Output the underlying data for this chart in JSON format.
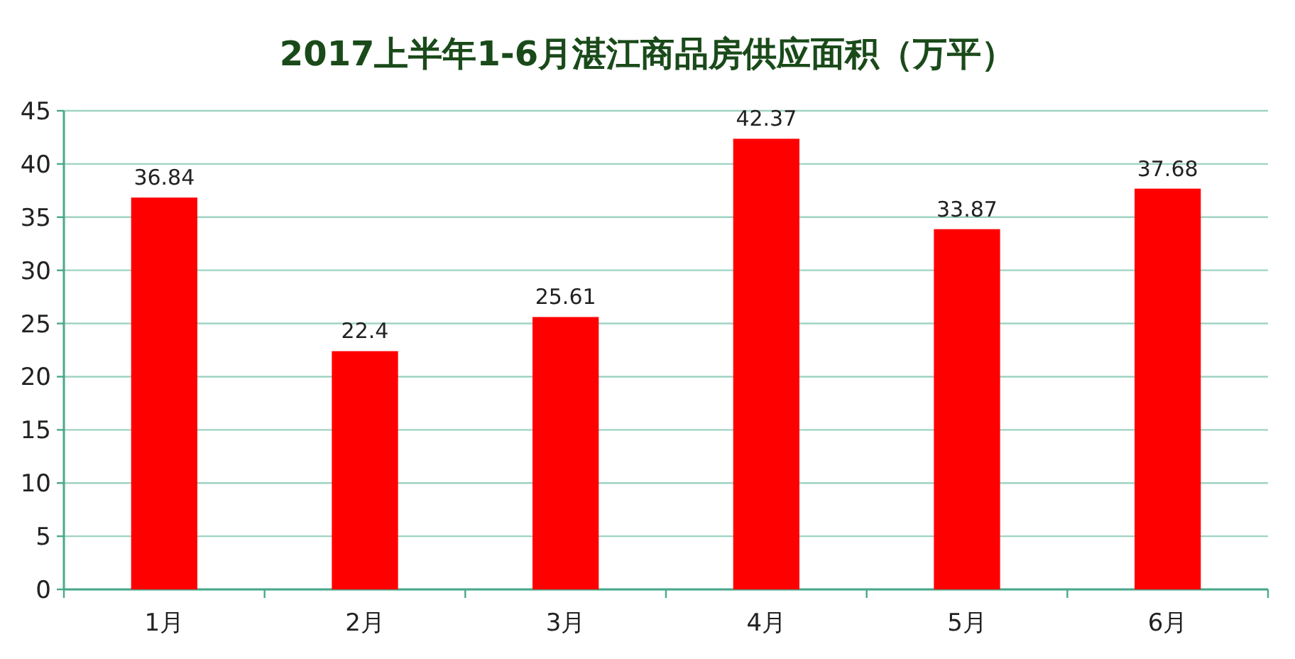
{
  "chart_data": {
    "type": "bar",
    "title": "2017上半年1-6月湛江商品房供应面积（万平）",
    "categories": [
      "1月",
      "2月",
      "3月",
      "4月",
      "5月",
      "6月"
    ],
    "values": [
      36.84,
      22.4,
      25.61,
      42.37,
      33.87,
      37.68
    ],
    "color": "#ff0000",
    "ylim": [
      0,
      45
    ],
    "yticks": [
      0,
      5,
      10,
      15,
      20,
      25,
      30,
      35,
      40,
      45
    ],
    "grid": "y",
    "data_labels": true
  }
}
